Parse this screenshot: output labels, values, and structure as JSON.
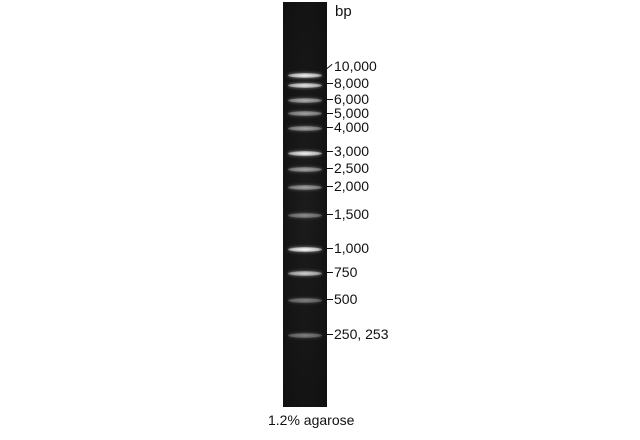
{
  "figure": {
    "unit_label": "bp",
    "caption": "1.2% agarose",
    "bands": [
      {
        "label": "10,000",
        "intensity": 0.95
      },
      {
        "label": "8,000",
        "intensity": 0.9
      },
      {
        "label": "6,000",
        "intensity": 0.65
      },
      {
        "label": "5,000",
        "intensity": 0.6
      },
      {
        "label": "4,000",
        "intensity": 0.6
      },
      {
        "label": "3,000",
        "intensity": 0.95
      },
      {
        "label": "2,500",
        "intensity": 0.6
      },
      {
        "label": "2,000",
        "intensity": 0.6
      },
      {
        "label": "1,500",
        "intensity": 0.5
      },
      {
        "label": "1,000",
        "intensity": 1.0
      },
      {
        "label": "750",
        "intensity": 0.8
      },
      {
        "label": "500",
        "intensity": 0.45
      },
      {
        "label": "250, 253",
        "intensity": 0.45
      }
    ]
  }
}
